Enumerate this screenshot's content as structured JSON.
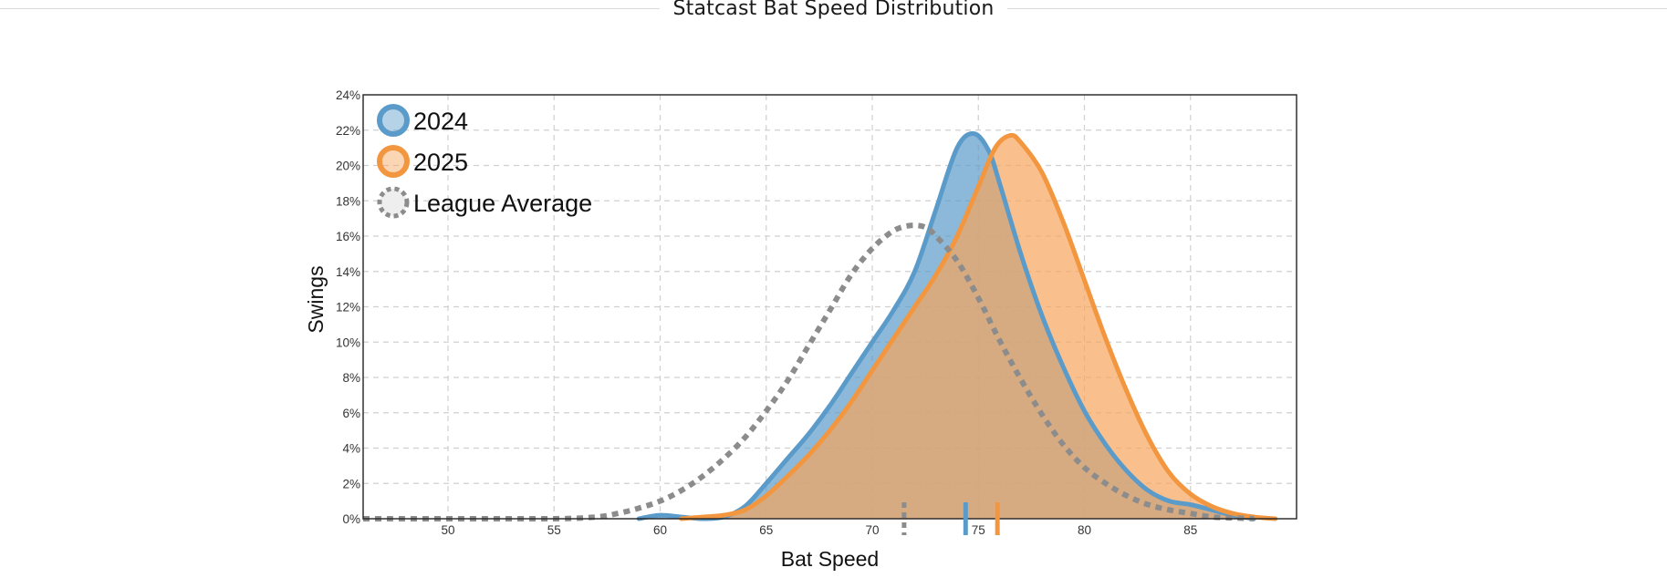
{
  "chart_data": {
    "type": "area",
    "title": "Statcast Bat Speed Distribution",
    "xlabel": "Bat Speed",
    "ylabel": "Swings",
    "xlim": [
      46,
      90
    ],
    "ylim": [
      0,
      24
    ],
    "x_ticks": [
      50,
      55,
      60,
      65,
      70,
      75,
      80,
      85
    ],
    "y_ticks": [
      "0%",
      "2%",
      "4%",
      "6%",
      "8%",
      "10%",
      "12%",
      "14%",
      "16%",
      "18%",
      "20%",
      "22%",
      "24%"
    ],
    "y_tick_values": [
      0,
      2,
      4,
      6,
      8,
      10,
      12,
      14,
      16,
      18,
      20,
      22,
      24
    ],
    "grid": true,
    "legend_position": "top-left",
    "series": [
      {
        "name": "2024",
        "color": "#5b9bc9",
        "fill": "#5b9bc9",
        "style": "solid",
        "x": [
          59,
          60,
          61,
          62,
          63,
          64,
          65,
          66,
          67,
          68,
          69,
          70,
          71,
          72,
          73,
          74,
          74.8,
          75.5,
          76,
          77,
          78,
          79,
          80,
          81,
          82,
          83,
          84,
          85,
          86,
          87,
          88
        ],
        "values": [
          0,
          0.2,
          0.1,
          0,
          0.1,
          0.7,
          2.0,
          3.4,
          4.8,
          6.4,
          8.2,
          10.0,
          11.8,
          14.0,
          17.5,
          21.0,
          21.8,
          20.8,
          19.0,
          15.0,
          11.5,
          8.6,
          6.1,
          4.2,
          2.7,
          1.6,
          1.0,
          0.8,
          0.5,
          0.2,
          0
        ]
      },
      {
        "name": "2025",
        "color": "#f2963f",
        "fill": "#f7a55c",
        "style": "solid",
        "x": [
          61,
          62,
          63,
          64,
          65,
          66,
          67,
          68,
          69,
          70,
          71,
          72,
          73,
          74,
          75,
          75.8,
          76.5,
          77,
          78,
          79,
          80,
          81,
          82,
          83,
          84,
          85,
          86,
          87,
          88,
          89
        ],
        "values": [
          0,
          0.1,
          0.2,
          0.5,
          1.3,
          2.4,
          3.6,
          5.0,
          6.6,
          8.4,
          10.2,
          12.0,
          13.8,
          16.0,
          18.8,
          21.0,
          21.7,
          21.3,
          19.6,
          16.8,
          13.5,
          10.2,
          7.2,
          4.6,
          2.6,
          1.4,
          0.7,
          0.3,
          0.1,
          0
        ]
      },
      {
        "name": "League Average",
        "color": "#8c8c8c",
        "fill": "none",
        "style": "dotted",
        "x": [
          46,
          50,
          55,
          57,
          58,
          59,
          60,
          61,
          62,
          63,
          64,
          65,
          66,
          67,
          68,
          69,
          70,
          71,
          71.8,
          72.5,
          73,
          74,
          75,
          76,
          77,
          78,
          79,
          80,
          81,
          82,
          83,
          84,
          85,
          86,
          87,
          88
        ],
        "values": [
          0,
          0,
          0,
          0.1,
          0.3,
          0.6,
          1.0,
          1.6,
          2.4,
          3.4,
          4.6,
          6.1,
          7.8,
          9.8,
          11.8,
          13.8,
          15.3,
          16.3,
          16.6,
          16.5,
          16.0,
          14.6,
          12.5,
          10.1,
          7.9,
          5.9,
          4.2,
          2.9,
          2.0,
          1.3,
          0.8,
          0.5,
          0.3,
          0.1,
          0.05,
          0
        ]
      }
    ],
    "averages": [
      {
        "series": "League Average",
        "value": 71.5
      },
      {
        "series": "2024",
        "value": 74.4
      },
      {
        "series": "2025",
        "value": 75.9
      }
    ]
  }
}
